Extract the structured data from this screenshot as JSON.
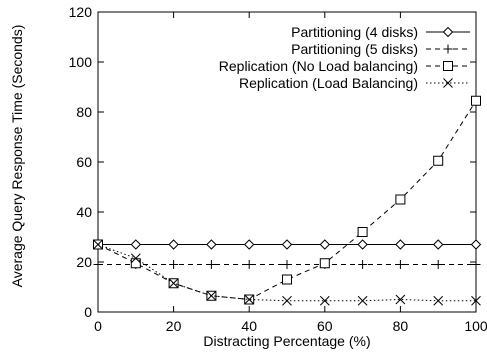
{
  "chart_data": {
    "type": "line",
    "xlabel": "Distracting Percentage (%)",
    "ylabel": "Average Query Response Time (Seconds)",
    "xlim": [
      0,
      100
    ],
    "ylim": [
      0,
      120
    ],
    "x_ticks": [
      "0",
      "20",
      "40",
      "60",
      "80",
      "100"
    ],
    "y_ticks": [
      "0",
      "20",
      "40",
      "60",
      "80",
      "100",
      "120"
    ],
    "grid": false,
    "legend_position": "top-right",
    "x": [
      0,
      10,
      20,
      30,
      40,
      50,
      60,
      70,
      80,
      90,
      100
    ],
    "series": [
      {
        "name": "Partitioning (4 disks)",
        "marker": "diamond",
        "line": "solid",
        "values": [
          27,
          27,
          27,
          27,
          27,
          27,
          27,
          27,
          27,
          27,
          27
        ]
      },
      {
        "name": "Partitioning (5 disks)",
        "marker": "plus",
        "line": "dashed",
        "values": [
          19,
          19,
          19,
          19,
          19,
          19,
          19,
          19,
          19,
          19,
          19
        ]
      },
      {
        "name": "Replication (No Load balancing)",
        "marker": "square",
        "line": "dashed",
        "values": [
          27,
          19.5,
          11.5,
          6.5,
          5,
          13,
          19.5,
          32,
          45,
          60.5,
          84.5
        ]
      },
      {
        "name": "Replication (Load Balancing)",
        "marker": "cross",
        "line": "dotted",
        "values": [
          27,
          21.5,
          11.5,
          6.5,
          5,
          4.5,
          4.5,
          4.5,
          5,
          4.5,
          4.5
        ]
      }
    ]
  }
}
